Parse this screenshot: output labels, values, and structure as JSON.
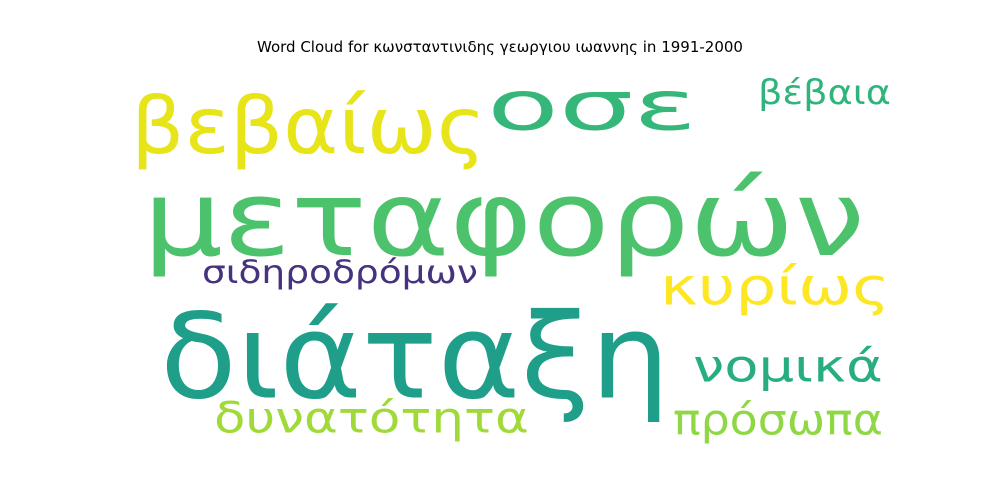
{
  "chart_data": {
    "type": "wordcloud",
    "title": "Word Cloud for κωνσταντινιδης γεωργιου ιωαννης in 1991-2000",
    "words": [
      {
        "text": "μεταφορών",
        "color": "#4cc26c"
      },
      {
        "text": "διάταξη",
        "color": "#1f9e89"
      },
      {
        "text": "οσε",
        "color": "#35b779"
      },
      {
        "text": "βεβαίως",
        "color": "#e7e419"
      },
      {
        "text": "κυρίως",
        "color": "#fde725"
      },
      {
        "text": "νομικά",
        "color": "#27ad81"
      },
      {
        "text": "πρόσωπα",
        "color": "#8fd744"
      },
      {
        "text": "δυνατότητα",
        "color": "#a0da39"
      },
      {
        "text": "βέβαια",
        "color": "#2fb47c"
      },
      {
        "text": "σιδηροδρόμων",
        "color": "#46327e"
      }
    ]
  }
}
